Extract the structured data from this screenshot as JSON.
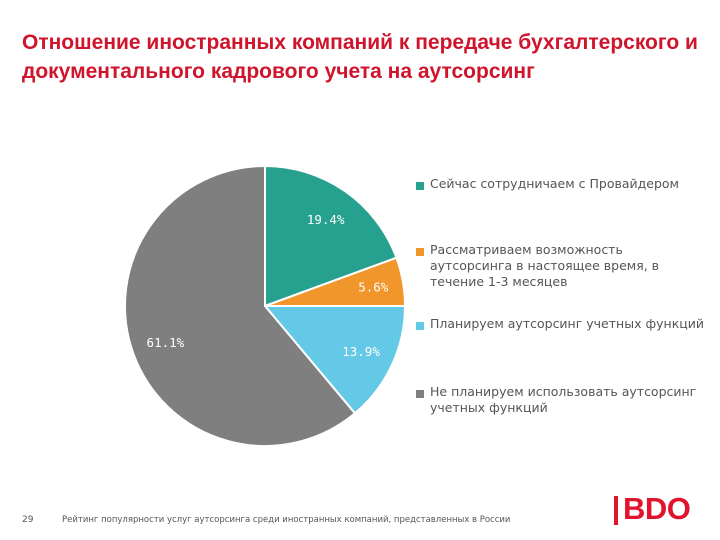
{
  "chart_data": {
    "type": "pie",
    "title": "Отношение иностранных компаний к передаче бухгалтерского и документального кадрового учета на аутсорсинг",
    "slices": [
      {
        "label": "Сейчас сотрудничаем с Провайдером",
        "value": 19.4,
        "value_label": "19.4%",
        "color": "#26a190"
      },
      {
        "label": "Рассматриваем возможность аутсорсинга в настоящее время, в течение 1-3 месяцев",
        "value": 5.6,
        "value_label": "5.6%",
        "color": "#f0962a"
      },
      {
        "label": "Планируем аутсорсинг учетных функций",
        "value": 13.9,
        "value_label": "13.9%",
        "color": "#63c9e6"
      },
      {
        "label": "Не планируем использовать аутсорсинг учетных функций",
        "value": 61.1,
        "value_label": "61.1%",
        "color": "#7f7f7f"
      }
    ],
    "start_angle": "12 o'clock",
    "direction": "clockwise",
    "legend_position": "right"
  },
  "footer": {
    "page_number": "29",
    "note": "Рейтинг популярности услуг аутсорсинга среди иностранных компаний, представленных в России"
  },
  "logo": {
    "text": "BDO",
    "color": "#e0142c"
  },
  "colors": {
    "title": "#d0142c",
    "slice_border": "#ffffff",
    "data_label": "#ffffff"
  }
}
